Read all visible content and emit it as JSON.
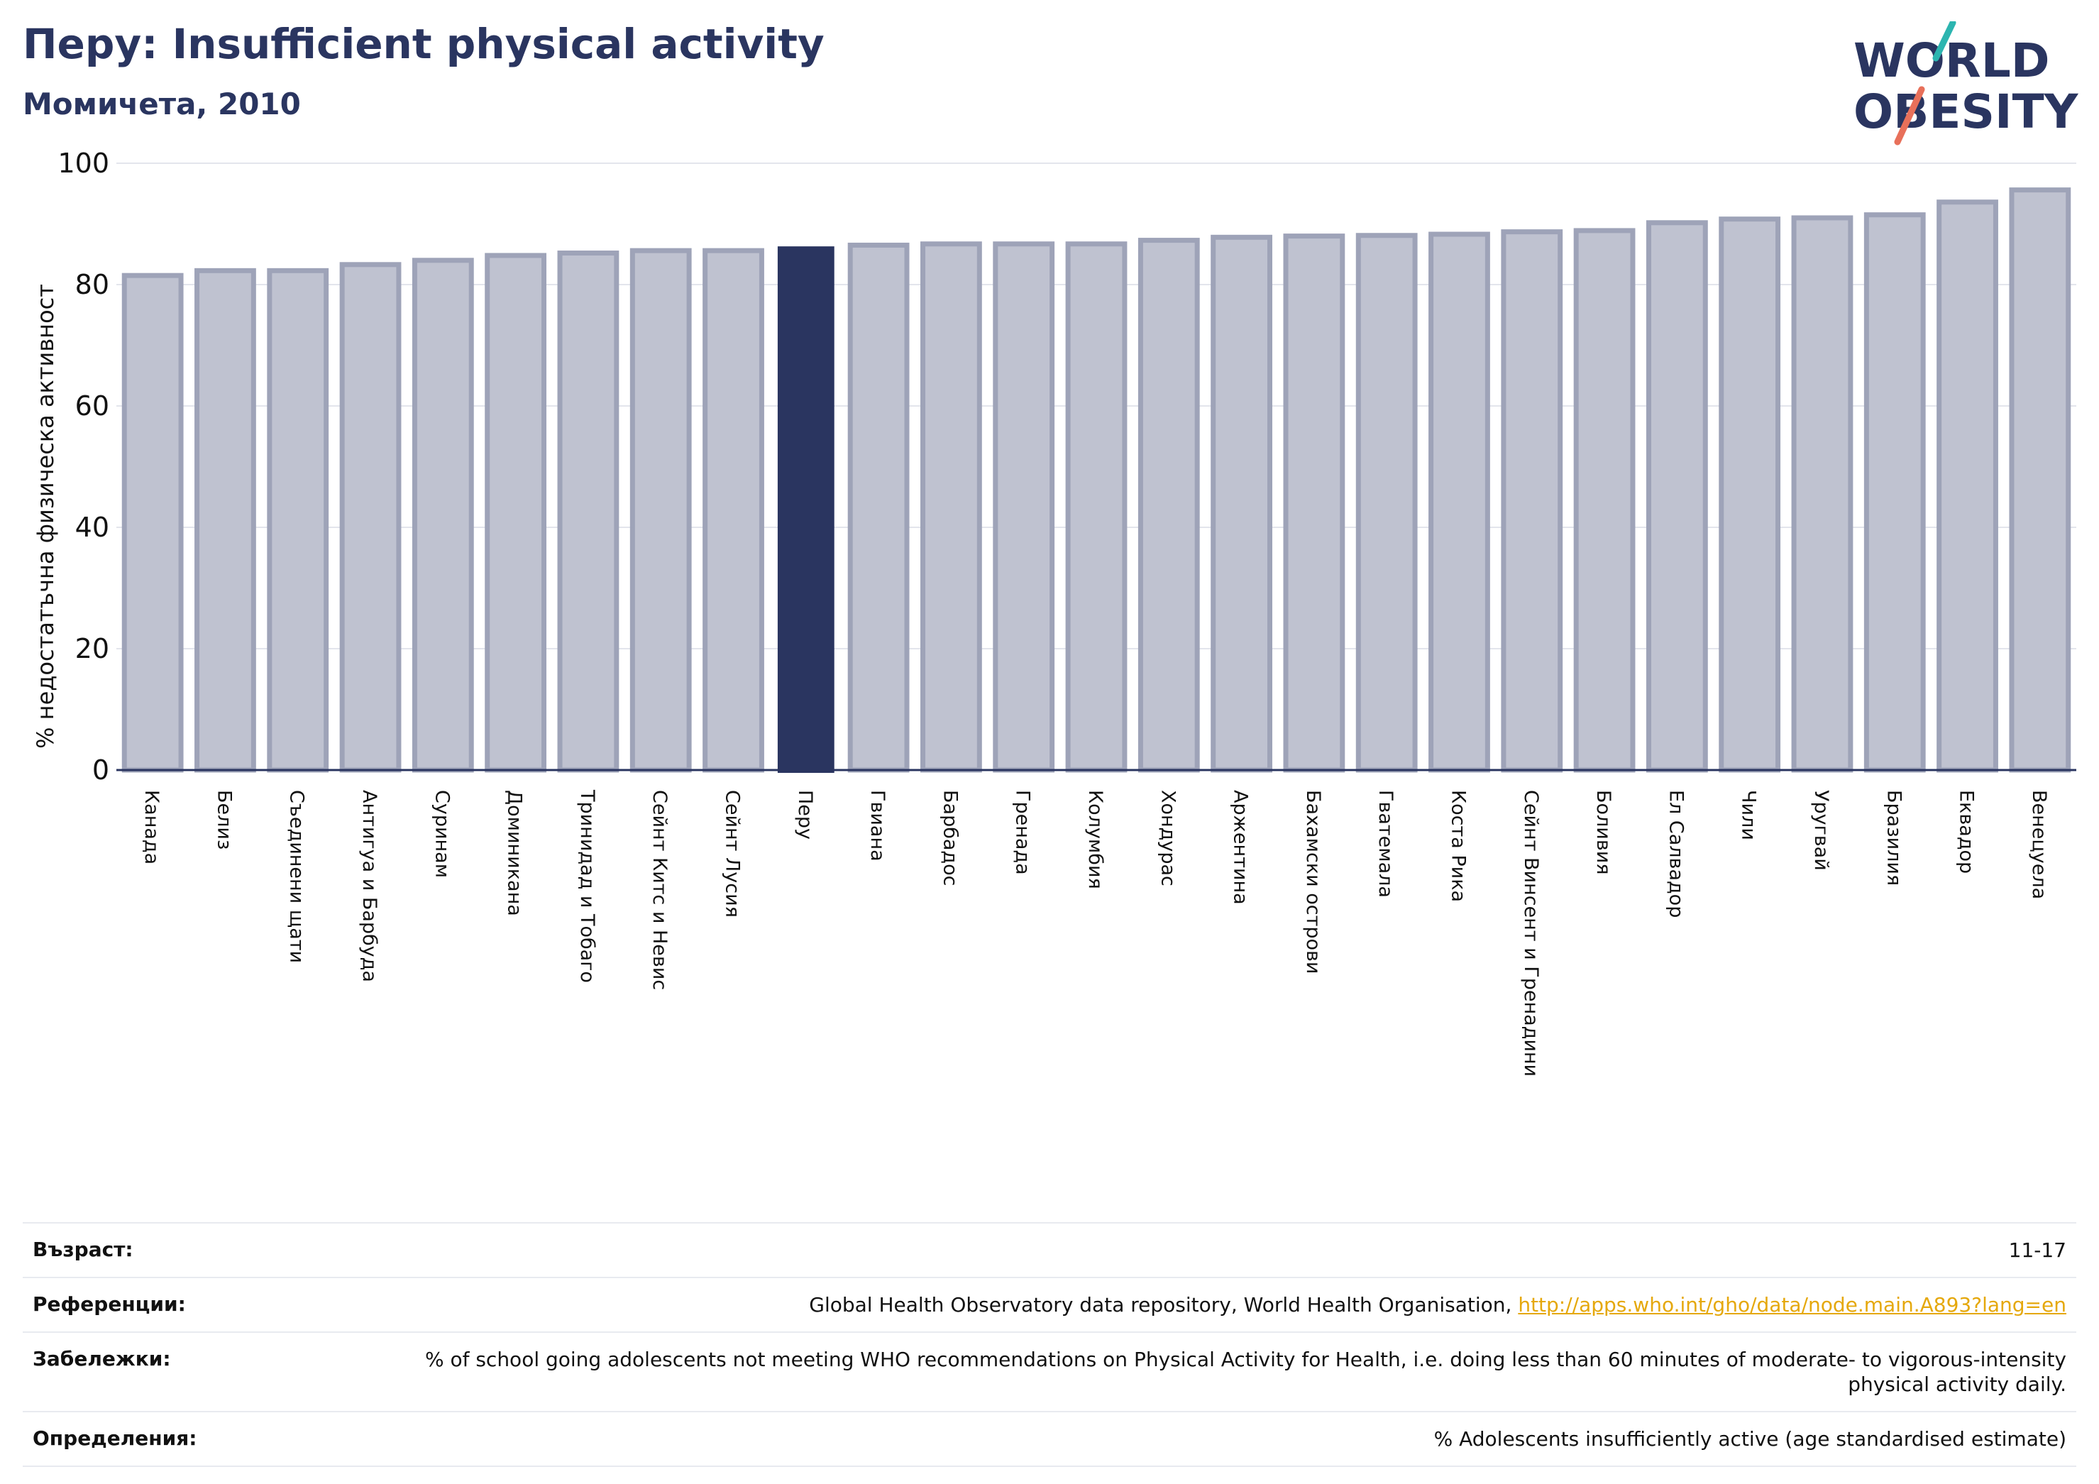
{
  "header": {
    "title": "Перу: Insufficient physical activity",
    "subtitle": "Момичета, 2010"
  },
  "logo": {
    "line1": "WORLD",
    "line2": "OBESITY",
    "colors": {
      "text": "#2a3560",
      "slash_teal": "#2cb5b0",
      "slash_coral": "#e8705a"
    }
  },
  "colors": {
    "bar": "#bfc2d0",
    "bar_edge": "#9ea3b8",
    "highlight": "#2a3560",
    "grid": "#e3e5ec",
    "axis": "#2a3560",
    "link": "#e5a80c"
  },
  "chart_data": {
    "type": "bar",
    "ylabel": "% недостатъчна физическа активност",
    "ylim": [
      0,
      100
    ],
    "yticks": [
      0,
      20,
      40,
      60,
      80,
      100
    ],
    "grid": true,
    "highlight": "Перу",
    "categories": [
      "Канада",
      "Белиз",
      "Съединени щати",
      "Антигуа и Барбуда",
      "Суринам",
      "Доминикана",
      "Тринидад и Тобаго",
      "Сейнт Китс и Невис",
      "Сейнт Лусия",
      "Перу",
      "Гвиана",
      "Барбадос",
      "Гренада",
      "Колумбия",
      "Хондурас",
      "Аржентина",
      "Бахамски острови",
      "Гватемала",
      "Коста Рика",
      "Сейнт Винсент и Гренадини",
      "Боливия",
      "Ел Салвадор",
      "Чили",
      "Уругвай",
      "Бразилия",
      "Еквадор",
      "Венецуела"
    ],
    "values": [
      81.5,
      82.3,
      82.3,
      83.3,
      84.0,
      84.8,
      85.2,
      85.6,
      85.6,
      86.3,
      86.5,
      86.7,
      86.7,
      86.7,
      87.3,
      87.8,
      88.0,
      88.1,
      88.3,
      88.7,
      88.9,
      90.2,
      90.8,
      91.0,
      91.5,
      93.6,
      95.6
    ]
  },
  "info": {
    "rows": [
      {
        "label": "Възраст:",
        "value": "11-17"
      },
      {
        "label": "Референции:",
        "value": "Global Health Observatory data repository, World Health Organisation, ",
        "link": "http://apps.who.int/gho/data/node.main.A893?lang=en"
      },
      {
        "label": "Забележки:",
        "value": "% of school going adolescents not meeting WHO recommendations on Physical Activity for Health, i.e. doing less than 60 minutes of moderate- to vigorous-intensity physical activity daily."
      },
      {
        "label": "Определения:",
        "value": "% Adolescents insufficiently active (age standardised estimate)"
      }
    ]
  }
}
